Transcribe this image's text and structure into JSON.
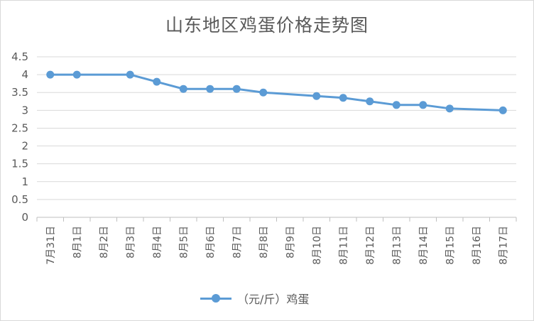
{
  "chart_data": {
    "type": "line",
    "title": "山东地区鸡蛋价格走势图",
    "xlabel": "",
    "ylabel": "",
    "ylim": [
      0,
      4.5
    ],
    "yticks": [
      "0",
      "0.5",
      "1",
      "1.5",
      "2",
      "2.5",
      "3",
      "3.5",
      "4",
      "4.5"
    ],
    "categories": [
      "7月31日",
      "8月1日",
      "8月2日",
      "8月3日",
      "8月4日",
      "8月5日",
      "8月6日",
      "8月7日",
      "8月8日",
      "8月9日",
      "8月10日",
      "8月11日",
      "8月12日",
      "8月13日",
      "8月14日",
      "8月15日",
      "8月16日",
      "8月17日"
    ],
    "series": [
      {
        "name": "（元/斤）鸡蛋",
        "color": "#5b9bd5",
        "values": [
          4.0,
          4.0,
          null,
          4.0,
          3.8,
          3.6,
          3.6,
          3.6,
          3.5,
          null,
          3.4,
          3.35,
          3.25,
          3.15,
          3.15,
          3.05,
          null,
          3.0
        ]
      }
    ],
    "grid": true,
    "legend": "bottom"
  }
}
